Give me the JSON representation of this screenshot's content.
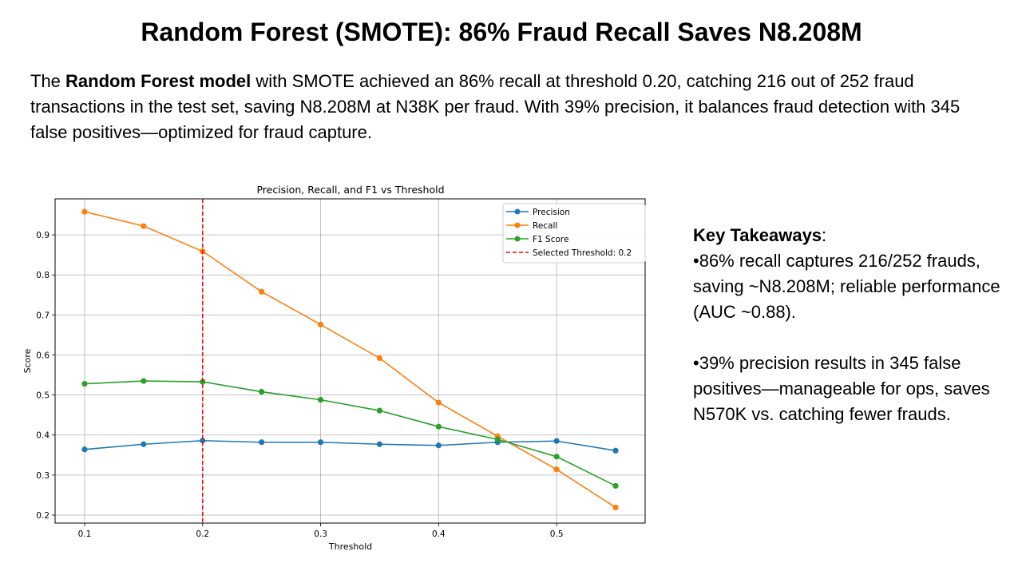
{
  "title": "Random Forest (SMOTE): 86% Fraud Recall Saves N8.208M",
  "intro": {
    "before": "The ",
    "bold": "Random Forest model",
    "after": " with SMOTE achieved an 86% recall at threshold 0.20, catching 216 out of 252 fraud transactions in the test set, saving N8.208M at N38K per fraud. With 39% precision, it balances fraud detection with 345 false positives—optimized for fraud capture."
  },
  "takeaways": {
    "heading": "Key Takeaways",
    "colon": ":",
    "bullets": [
      "•86% recall captures 216/252 frauds, saving ~N8.208M; reliable performance (AUC ~0.88).",
      "•39% precision results in 345 false positives—manageable for ops, saves N570K vs. catching fewer frauds."
    ]
  },
  "chart_data": {
    "type": "line",
    "title": "Precision, Recall, and F1 vs Threshold",
    "xlabel": "Threshold",
    "ylabel": "Score",
    "x": [
      0.1,
      0.15,
      0.2,
      0.25,
      0.3,
      0.35,
      0.4,
      0.45,
      0.5,
      0.55
    ],
    "xlim": [
      0.075,
      0.575
    ],
    "ylim": [
      0.18,
      0.99
    ],
    "xticks": [
      0.1,
      0.2,
      0.3,
      0.4,
      0.5
    ],
    "xtick_labels": [
      "0.1",
      "0.2",
      "0.3",
      "0.4",
      "0.5"
    ],
    "yticks": [
      0.2,
      0.3,
      0.4,
      0.5,
      0.6,
      0.7,
      0.8,
      0.9
    ],
    "ytick_labels": [
      "0.2",
      "0.3",
      "0.4",
      "0.5",
      "0.6",
      "0.7",
      "0.8",
      "0.9"
    ],
    "grid": true,
    "legend_position": "top-right",
    "series": [
      {
        "name": "Precision",
        "color": "#1f77b4",
        "values": [
          0.364,
          0.377,
          0.386,
          0.382,
          0.382,
          0.377,
          0.374,
          0.382,
          0.385,
          0.361
        ]
      },
      {
        "name": "Recall",
        "color": "#ff7f0e",
        "values": [
          0.958,
          0.922,
          0.859,
          0.758,
          0.676,
          0.592,
          0.481,
          0.397,
          0.314,
          0.219
        ]
      },
      {
        "name": "F1 Score",
        "color": "#2ca02c",
        "values": [
          0.528,
          0.535,
          0.533,
          0.508,
          0.488,
          0.461,
          0.421,
          0.389,
          0.346,
          0.273
        ]
      }
    ],
    "threshold_line": {
      "x": 0.2,
      "name": "Selected Threshold: 0.2",
      "color": "#ff0000"
    }
  }
}
